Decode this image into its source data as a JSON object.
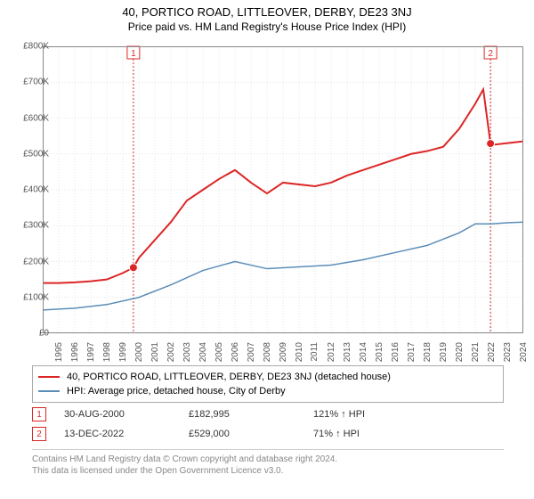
{
  "title": "40, PORTICO ROAD, LITTLEOVER, DERBY, DE23 3NJ",
  "subtitle": "Price paid vs. HM Land Registry's House Price Index (HPI)",
  "chart": {
    "type": "line",
    "background_color": "#ffffff",
    "grid_color": "#cccccc",
    "plot_border_color": "#888888",
    "xlim": [
      1995,
      2025
    ],
    "x_ticks": [
      1995,
      1996,
      1997,
      1998,
      1999,
      2000,
      2001,
      2002,
      2003,
      2004,
      2005,
      2006,
      2007,
      2008,
      2009,
      2010,
      2011,
      2012,
      2013,
      2014,
      2015,
      2016,
      2017,
      2018,
      2019,
      2020,
      2021,
      2022,
      2023,
      2024,
      2025
    ],
    "ylim": [
      0,
      800000
    ],
    "y_ticks": [
      0,
      100000,
      200000,
      300000,
      400000,
      500000,
      600000,
      700000,
      800000
    ],
    "y_tick_labels": [
      "£0",
      "£100K",
      "£200K",
      "£300K",
      "£400K",
      "£500K",
      "£600K",
      "£700K",
      "£800K"
    ],
    "series": [
      {
        "name": "40, PORTICO ROAD, LITTLEOVER, DERBY, DE23 3NJ (detached house)",
        "color": "#dc2626",
        "line_width": 2,
        "x": [
          1995,
          1996,
          1997,
          1998,
          1999,
          2000,
          2000.66,
          2001,
          2002,
          2003,
          2004,
          2005,
          2006,
          2007,
          2008,
          2009,
          2010,
          2011,
          2012,
          2013,
          2014,
          2015,
          2016,
          2017,
          2018,
          2019,
          2020,
          2021,
          2022,
          2022.5,
          2022.95,
          2023,
          2024,
          2025
        ],
        "y": [
          140000,
          140000,
          142000,
          145000,
          150000,
          168000,
          182995,
          210000,
          260000,
          310000,
          370000,
          400000,
          430000,
          455000,
          420000,
          390000,
          420000,
          415000,
          410000,
          420000,
          440000,
          455000,
          470000,
          485000,
          500000,
          508000,
          520000,
          570000,
          640000,
          680000,
          529000,
          525000,
          530000,
          535000
        ]
      },
      {
        "name": "HPI: Average price, detached house, City of Derby",
        "color": "#5b8db8",
        "line_width": 1.5,
        "x": [
          1995,
          1997,
          1999,
          2001,
          2003,
          2005,
          2007,
          2009,
          2011,
          2013,
          2015,
          2017,
          2019,
          2021,
          2022,
          2023,
          2024,
          2025
        ],
        "y": [
          65000,
          70000,
          80000,
          100000,
          135000,
          175000,
          200000,
          180000,
          185000,
          190000,
          205000,
          225000,
          245000,
          280000,
          305000,
          305000,
          308000,
          310000
        ]
      }
    ],
    "vertical_markers": [
      {
        "label": "1",
        "x": 2000.66,
        "color": "#dc2626",
        "dash": "2,2"
      },
      {
        "label": "2",
        "x": 2022.95,
        "color": "#dc2626",
        "dash": "2,2"
      }
    ],
    "sale_points": [
      {
        "x": 2000.66,
        "y": 182995,
        "color": "#dc2626"
      },
      {
        "x": 2022.95,
        "y": 529000,
        "color": "#dc2626"
      }
    ],
    "label_fontsize": 10,
    "title_fontsize": 13
  },
  "legend": {
    "items": [
      {
        "color": "#dc2626",
        "label": "40, PORTICO ROAD, LITTLEOVER, DERBY, DE23 3NJ (detached house)"
      },
      {
        "color": "#5b8db8",
        "label": "HPI: Average price, detached house, City of Derby"
      }
    ]
  },
  "sales": [
    {
      "badge": "1",
      "date": "30-AUG-2000",
      "price": "£182,995",
      "vs_hpi": "121% ↑ HPI"
    },
    {
      "badge": "2",
      "date": "13-DEC-2022",
      "price": "£529,000",
      "vs_hpi": "71% ↑ HPI"
    }
  ],
  "footnote_line1": "Contains HM Land Registry data © Crown copyright and database right 2024.",
  "footnote_line2": "This data is licensed under the Open Government Licence v3.0."
}
